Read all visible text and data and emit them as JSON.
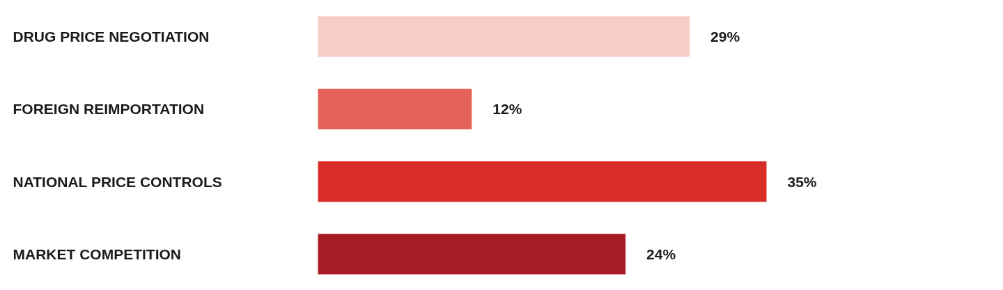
{
  "chart_data": {
    "type": "bar",
    "orientation": "horizontal",
    "categories": [
      "DRUG PRICE NEGOTIATION",
      "FOREIGN REIMPORTATION",
      "NATIONAL PRICE CONTROLS",
      "MARKET COMPETITION"
    ],
    "values": [
      29,
      12,
      35,
      24
    ],
    "colors": [
      "#f7cdc7",
      "#e5625a",
      "#d92d2a",
      "#a51c24"
    ],
    "value_labels": [
      "29%",
      "12%",
      "35%",
      "24%"
    ],
    "grid": false
  }
}
